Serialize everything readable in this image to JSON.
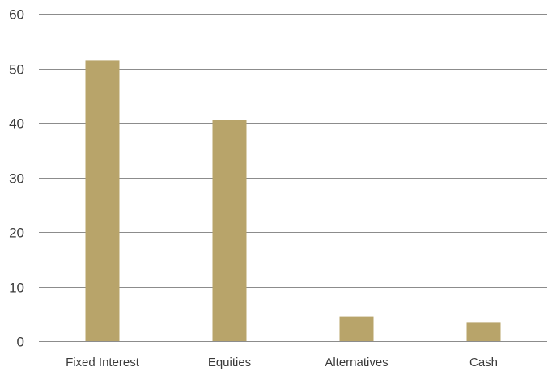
{
  "chart_data": {
    "type": "bar",
    "categories": [
      "Fixed Interest",
      "Equities",
      "Alternatives",
      "Cash"
    ],
    "values": [
      51.5,
      40.5,
      4.5,
      3.5
    ],
    "title": "",
    "xlabel": "",
    "ylabel": "",
    "ylim": [
      0,
      60
    ],
    "yticks": [
      0,
      10,
      20,
      30,
      40,
      50,
      60
    ],
    "grid": true,
    "legend": "none",
    "bar_color": "#b8a46a",
    "grid_color": "#8c8c8c"
  }
}
